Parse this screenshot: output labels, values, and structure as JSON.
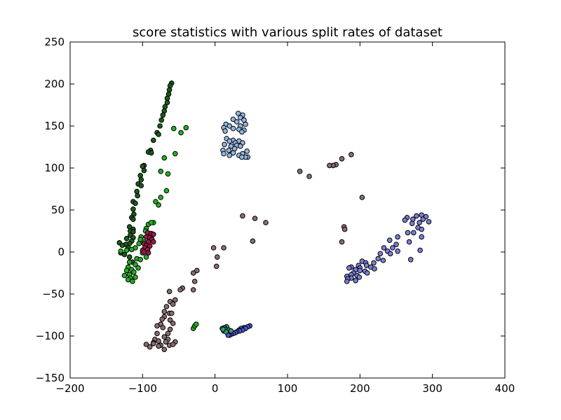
{
  "chart_data": {
    "type": "scatter",
    "title": "score statistics with various split rates of dataset",
    "xlabel": "",
    "ylabel": "",
    "xlim": [
      -200,
      400
    ],
    "ylim": [
      -150,
      250
    ],
    "xticks": [
      -200,
      -100,
      0,
      100,
      200,
      300,
      400
    ],
    "yticks": [
      -150,
      -100,
      -50,
      0,
      50,
      100,
      150,
      200,
      250
    ],
    "grid": false,
    "legend": "none",
    "series": [
      {
        "color": "#1a5c1a",
        "points": [
          [
            -60,
            201
          ],
          [
            -62,
            198
          ],
          [
            -63,
            193
          ],
          [
            -64,
            188
          ],
          [
            -66,
            183
          ],
          [
            -66,
            178
          ],
          [
            -69,
            173
          ],
          [
            -70,
            168
          ],
          [
            -72,
            163
          ],
          [
            -74,
            157
          ],
          [
            -76,
            150
          ],
          [
            -80,
            142
          ],
          [
            -78,
            140
          ],
          [
            -85,
            133
          ],
          [
            -89,
            121
          ],
          [
            -92,
            119
          ],
          [
            -88,
            118
          ],
          [
            -98,
            103
          ],
          [
            -100,
            102
          ],
          [
            -98,
            97
          ],
          [
            -103,
            91
          ],
          [
            -102,
            86
          ],
          [
            -106,
            81
          ],
          [
            -102,
            79
          ],
          [
            -108,
            72
          ],
          [
            -107,
            67
          ],
          [
            -113,
            60
          ],
          [
            -110,
            58
          ],
          [
            -113,
            51
          ],
          [
            -112,
            45
          ],
          [
            -115,
            41
          ],
          [
            -113,
            39
          ],
          [
            -118,
            30
          ],
          [
            -113,
            27
          ],
          [
            -117,
            25
          ],
          [
            -113,
            24
          ],
          [
            -117,
            20
          ],
          [
            -113,
            17
          ],
          [
            -122,
            16
          ],
          [
            -115,
            13
          ],
          [
            -118,
            10
          ],
          [
            -123,
            9
          ],
          [
            -132,
            11
          ],
          [
            -128,
            8
          ],
          [
            -120,
            5
          ],
          [
            -130,
            -1
          ],
          [
            -125,
            -3
          ],
          [
            -118,
            -6
          ],
          [
            -114,
            -12
          ]
        ]
      },
      {
        "color": "#22b022",
        "points": [
          [
            -57,
            147
          ],
          [
            -47,
            142
          ],
          [
            -40,
            148
          ],
          [
            -55,
            117
          ],
          [
            -70,
            112
          ],
          [
            -75,
            96
          ],
          [
            -65,
            93
          ],
          [
            -67,
            73
          ],
          [
            -82,
            60
          ],
          [
            -78,
            56
          ],
          [
            -75,
            65
          ],
          [
            -92,
            33
          ],
          [
            -85,
            35
          ],
          [
            -88,
            35
          ],
          [
            -95,
            28
          ],
          [
            -96,
            25
          ],
          [
            -102,
            18
          ],
          [
            -103,
            15
          ],
          [
            -98,
            12
          ],
          [
            -105,
            10
          ],
          [
            -110,
            5
          ],
          [
            -115,
            3
          ],
          [
            -122,
            2
          ],
          [
            -130,
            1
          ],
          [
            -100,
            -1
          ],
          [
            -95,
            -6
          ],
          [
            -108,
            -8
          ],
          [
            -103,
            -9
          ],
          [
            -118,
            -12
          ],
          [
            -110,
            -15
          ],
          [
            -120,
            -18
          ],
          [
            -106,
            -19
          ],
          [
            -115,
            -21
          ],
          [
            -122,
            -22
          ],
          [
            -112,
            -24
          ],
          [
            -118,
            -27
          ],
          [
            -125,
            -28
          ],
          [
            -117,
            -31
          ],
          [
            -110,
            -30
          ],
          [
            -120,
            -33
          ],
          [
            -114,
            -35
          ],
          [
            -30,
            -91
          ],
          [
            -28,
            -88
          ],
          [
            -26,
            -86
          ]
        ]
      },
      {
        "color": "#a0184a",
        "points": [
          [
            -93,
            23
          ],
          [
            -88,
            22
          ],
          [
            -85,
            21
          ],
          [
            -95,
            18
          ],
          [
            -90,
            17
          ],
          [
            -87,
            15
          ],
          [
            -92,
            12
          ],
          [
            -85,
            12
          ],
          [
            -98,
            10
          ],
          [
            -95,
            8
          ],
          [
            -90,
            7
          ],
          [
            -97,
            5
          ],
          [
            -93,
            3
          ],
          [
            -100,
            2
          ],
          [
            -98,
            0
          ],
          [
            -92,
            -1
          ]
        ]
      },
      {
        "color": "#8a6d6d",
        "points": [
          [
            175,
            111
          ],
          [
            188,
            116
          ],
          [
            167,
            104
          ],
          [
            163,
            103
          ],
          [
            158,
            103
          ],
          [
            117,
            96
          ],
          [
            130,
            90
          ],
          [
            203,
            65
          ],
          [
            178,
            30
          ],
          [
            179,
            27
          ],
          [
            175,
            12
          ],
          [
            55,
            40
          ],
          [
            70,
            35
          ],
          [
            38,
            43
          ],
          [
            52,
            13
          ],
          [
            -2,
            5
          ],
          [
            12,
            5
          ],
          [
            3,
            -6
          ],
          [
            2,
            -17
          ],
          [
            -25,
            -22
          ],
          [
            -30,
            -25
          ],
          [
            -28,
            -35
          ],
          [
            -30,
            -45
          ],
          [
            -45,
            -43
          ],
          [
            -48,
            -45
          ],
          [
            -63,
            -47
          ],
          [
            -55,
            -57
          ],
          [
            -62,
            -59
          ],
          [
            -58,
            -62
          ],
          [
            -67,
            -65
          ],
          [
            -70,
            -71
          ],
          [
            -63,
            -73
          ],
          [
            -60,
            -73
          ],
          [
            -70,
            -77
          ],
          [
            -62,
            -81
          ],
          [
            -73,
            -80
          ],
          [
            -58,
            -85
          ],
          [
            -75,
            -86
          ],
          [
            -72,
            -90
          ],
          [
            -80,
            -88
          ],
          [
            -62,
            -92
          ],
          [
            -65,
            -97
          ],
          [
            -80,
            -97
          ],
          [
            -70,
            -101
          ],
          [
            -65,
            -104
          ],
          [
            -83,
            -104
          ],
          [
            -78,
            -106
          ],
          [
            -55,
            -107
          ],
          [
            -85,
            -108
          ],
          [
            -68,
            -107
          ],
          [
            -95,
            -110
          ],
          [
            -75,
            -111
          ],
          [
            -63,
            -111
          ],
          [
            -90,
            -113
          ],
          [
            -70,
            -116
          ],
          [
            -85,
            -109
          ],
          [
            -78,
            -112
          ],
          [
            -58,
            -110
          ]
        ]
      },
      {
        "color": "#92b7e3",
        "points": [
          [
            32,
            165
          ],
          [
            38,
            163
          ],
          [
            35,
            160
          ],
          [
            25,
            158
          ],
          [
            40,
            157
          ],
          [
            30,
            155
          ],
          [
            15,
            152
          ],
          [
            42,
            152
          ],
          [
            20,
            150
          ],
          [
            35,
            150
          ],
          [
            12,
            148
          ],
          [
            25,
            147
          ],
          [
            33,
            146
          ],
          [
            40,
            145
          ],
          [
            14,
            144
          ],
          [
            37,
            143
          ],
          [
            16,
            135
          ],
          [
            25,
            133
          ],
          [
            33,
            132
          ],
          [
            20,
            132
          ],
          [
            28,
            130
          ],
          [
            38,
            130
          ],
          [
            13,
            128
          ],
          [
            22,
            126
          ],
          [
            30,
            127
          ],
          [
            35,
            126
          ],
          [
            19,
            121
          ],
          [
            27,
            123
          ],
          [
            11,
            121
          ],
          [
            44,
            120
          ],
          [
            25,
            118
          ],
          [
            12,
            117
          ],
          [
            38,
            117
          ],
          [
            33,
            115
          ],
          [
            20,
            115
          ],
          [
            45,
            113
          ],
          [
            42,
            113
          ],
          [
            37,
            113
          ]
        ]
      },
      {
        "color": "#7a7fd8",
        "points": [
          [
            285,
            44
          ],
          [
            278,
            43
          ],
          [
            291,
            42
          ],
          [
            265,
            41
          ],
          [
            287,
            39
          ],
          [
            273,
            39
          ],
          [
            262,
            38
          ],
          [
            295,
            36
          ],
          [
            282,
            35
          ],
          [
            272,
            34
          ],
          [
            280,
            29
          ],
          [
            285,
            27
          ],
          [
            266,
            23
          ],
          [
            274,
            23
          ],
          [
            252,
            18
          ],
          [
            285,
            18
          ],
          [
            241,
            14
          ],
          [
            268,
            12
          ],
          [
            250,
            9
          ],
          [
            233,
            5
          ],
          [
            245,
            5
          ],
          [
            252,
            1
          ],
          [
            283,
            2
          ],
          [
            238,
            1
          ],
          [
            228,
            -2
          ],
          [
            242,
            -2
          ],
          [
            270,
            -9
          ],
          [
            225,
            -8
          ],
          [
            232,
            -10
          ],
          [
            203,
            -11
          ],
          [
            208,
            -13
          ],
          [
            219,
            -13
          ],
          [
            198,
            -16
          ],
          [
            209,
            -16
          ],
          [
            188,
            -18
          ],
          [
            200,
            -19
          ],
          [
            215,
            -18
          ],
          [
            220,
            -20
          ],
          [
            194,
            -21
          ],
          [
            185,
            -19
          ],
          [
            200,
            -22
          ],
          [
            207,
            -23
          ],
          [
            210,
            -25
          ],
          [
            191,
            -25
          ],
          [
            188,
            -27
          ],
          [
            196,
            -28
          ],
          [
            182,
            -29
          ],
          [
            199,
            -30
          ],
          [
            188,
            -31
          ],
          [
            183,
            -32
          ],
          [
            194,
            -34
          ],
          [
            182,
            -35
          ]
        ]
      },
      {
        "color": "#4a5ad0",
        "points": [
          [
            48,
            -88
          ],
          [
            45,
            -89
          ],
          [
            40,
            -90
          ],
          [
            42,
            -91
          ],
          [
            36,
            -91
          ],
          [
            38,
            -93
          ],
          [
            33,
            -93
          ],
          [
            34,
            -94
          ],
          [
            30,
            -95
          ],
          [
            28,
            -96
          ],
          [
            25,
            -97
          ],
          [
            22,
            -98
          ],
          [
            20,
            -99
          ],
          [
            18,
            -99
          ]
        ]
      },
      {
        "color": "#2f9e7a",
        "points": [
          [
            16,
            -89
          ],
          [
            13,
            -90
          ],
          [
            10,
            -91
          ],
          [
            14,
            -92
          ],
          [
            19,
            -93
          ],
          [
            12,
            -94
          ],
          [
            15,
            -95
          ],
          [
            22,
            -94
          ],
          [
            11,
            -92
          ]
        ]
      }
    ]
  }
}
